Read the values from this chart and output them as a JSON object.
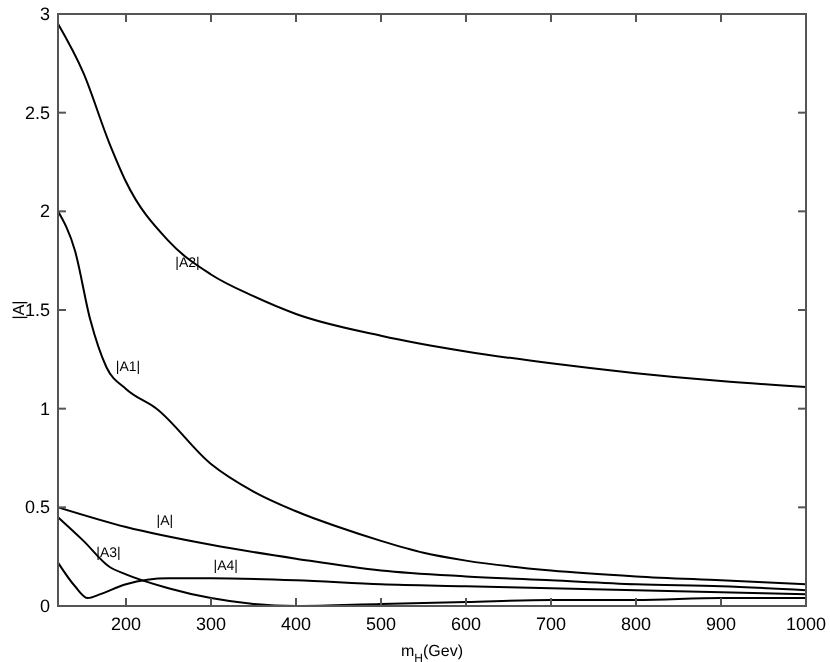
{
  "chart_data": {
    "type": "line",
    "xlabel": "m$_{H}$(Gev)",
    "ylabel": "|A|",
    "xlim": [
      120,
      1000
    ],
    "ylim": [
      0,
      3
    ],
    "xticks": [
      200,
      300,
      400,
      500,
      600,
      700,
      800,
      900,
      1000
    ],
    "yticks": [
      0,
      0.5,
      1,
      1.5,
      2,
      2.5,
      3
    ],
    "grid": false,
    "marker": "none",
    "line_style": "solid",
    "series": [
      {
        "name": "|A2|",
        "color": "#000000",
        "x": [
          120,
          150,
          180,
          200,
          250,
          300,
          350,
          400,
          500,
          600,
          700,
          800,
          900,
          1000
        ],
        "values": [
          2.95,
          2.7,
          2.35,
          2.15,
          1.85,
          1.68,
          1.57,
          1.48,
          1.37,
          1.29,
          1.23,
          1.18,
          1.14,
          1.11
        ]
      },
      {
        "name": "|A1|",
        "color": "#000000",
        "x": [
          120,
          140,
          158,
          177,
          200,
          236,
          300,
          350,
          400,
          450,
          500,
          550,
          600,
          700,
          800,
          900,
          1000
        ],
        "values": [
          2.0,
          1.8,
          1.45,
          1.21,
          1.1,
          1.0,
          0.72,
          0.58,
          0.48,
          0.4,
          0.33,
          0.27,
          0.23,
          0.18,
          0.15,
          0.13,
          0.11
        ]
      },
      {
        "name": "|A|",
        "color": "#000000",
        "x": [
          120,
          200,
          300,
          400,
          500,
          600,
          700,
          800,
          900,
          1000
        ],
        "values": [
          0.5,
          0.4,
          0.31,
          0.24,
          0.18,
          0.15,
          0.13,
          0.11,
          0.1,
          0.08
        ]
      },
      {
        "name": "|A3|",
        "color": "#000000",
        "x": [
          120,
          150,
          180,
          200,
          250,
          300,
          350,
          400,
          500,
          600,
          700,
          800,
          900,
          1000
        ],
        "values": [
          0.45,
          0.33,
          0.2,
          0.16,
          0.09,
          0.04,
          0.01,
          0.0,
          0.01,
          0.02,
          0.03,
          0.03,
          0.04,
          0.04
        ]
      },
      {
        "name": "|A4|",
        "color": "#000000",
        "x": [
          120,
          140,
          155,
          170,
          200,
          250,
          300,
          400,
          500,
          600,
          700,
          800,
          900,
          1000
        ],
        "values": [
          0.22,
          0.1,
          0.04,
          0.06,
          0.11,
          0.14,
          0.14,
          0.13,
          0.11,
          0.1,
          0.09,
          0.08,
          0.07,
          0.06
        ]
      }
    ]
  }
}
